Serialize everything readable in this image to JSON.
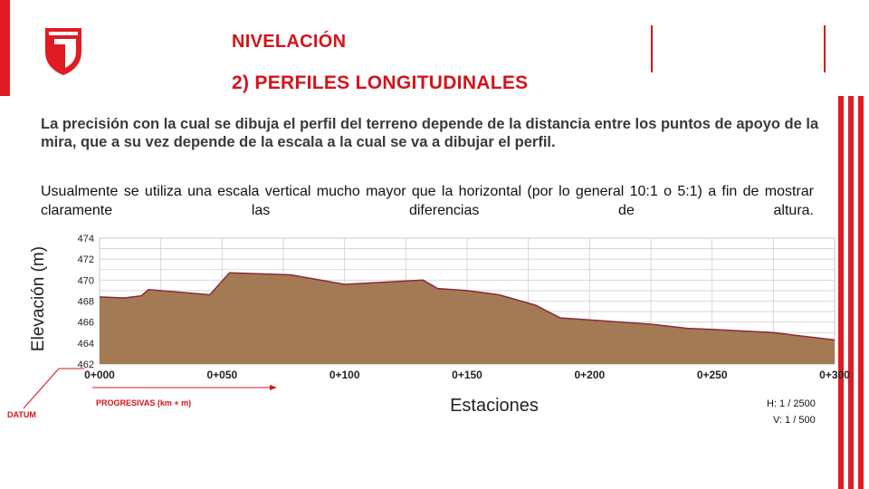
{
  "header": {
    "title": "NIVELACIÓN",
    "subtitle": "2) PERFILES LONGITUDINALES"
  },
  "logo": {
    "icon": "university-shield-logo-icon",
    "color": "#e01b22"
  },
  "colors": {
    "accent": "#d4141b",
    "terrain_fill": "#a47a55",
    "terrain_line": "#8a2a3a"
  },
  "body": {
    "paragraph1": "La precisión con la cual se dibuja el perfil del terreno depende de la distancia entre los puntos de apoyo de la mira, que a su vez depende de la escala a la cual se va a dibujar el perfil.",
    "paragraph2": "Usualmente se utiliza una escala vertical mucho mayor que la horizontal (por lo general 10:1 o 5:1) a fin de mostrar claramente las diferencias de altura."
  },
  "chart_data": {
    "type": "area",
    "xlabel": "Estaciones",
    "ylabel": "Elevación (m)",
    "x_tick_labels": [
      "0+000",
      "0+050",
      "0+100",
      "0+150",
      "0+200",
      "0+250",
      "0+300"
    ],
    "x_ticks": [
      0,
      50,
      100,
      150,
      200,
      250,
      300
    ],
    "xlim": [
      0,
      300
    ],
    "ylim": [
      462,
      474
    ],
    "y_ticks": [
      462,
      464,
      466,
      468,
      470,
      472,
      474
    ],
    "grid": true,
    "series": [
      {
        "x": [
          0,
          10,
          17,
          20,
          45,
          53,
          78,
          100,
          132,
          138,
          150,
          163,
          178,
          188,
          225,
          240,
          250,
          275,
          300
        ],
        "y": [
          468.4,
          468.3,
          468.5,
          469.1,
          468.6,
          470.7,
          470.5,
          469.6,
          470.0,
          469.2,
          469.0,
          468.6,
          467.6,
          466.4,
          465.8,
          465.4,
          465.3,
          465.0,
          464.3
        ]
      }
    ],
    "annotations": {
      "datum": "DATUM",
      "progresivas": "PROGRESIVAS (km + m)",
      "scale_h": "H: 1 / 2500",
      "scale_v": "V: 1 / 500"
    }
  }
}
